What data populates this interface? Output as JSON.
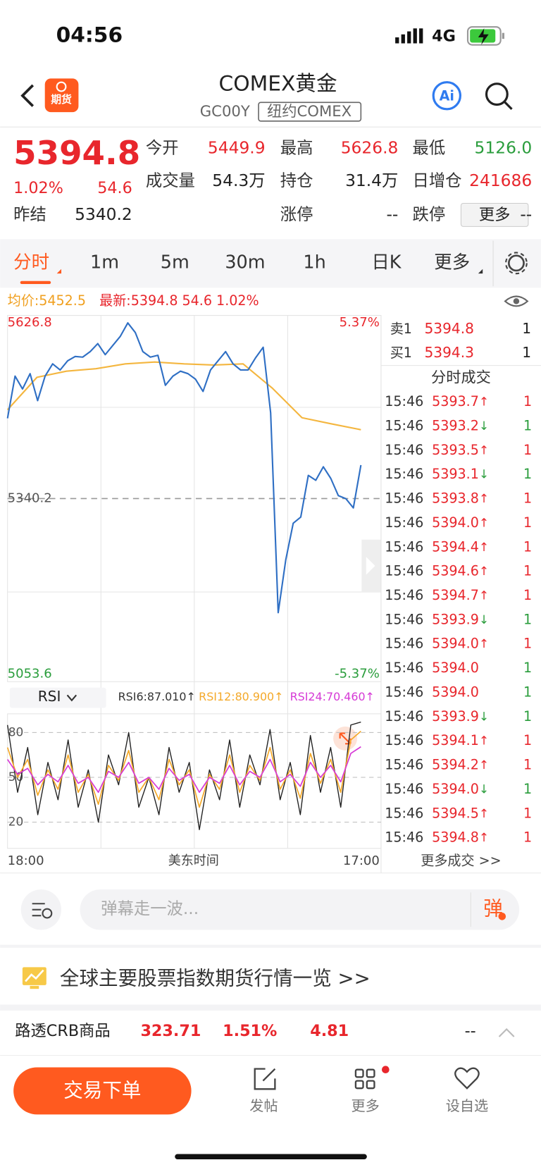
{
  "status": {
    "time": "04:56",
    "network": "4G"
  },
  "header": {
    "logo": "期货",
    "title": "COMEX黄金",
    "code": "GC00Y",
    "exchange": "纽约COMEX",
    "ai": "Ai"
  },
  "quote": {
    "price": "5394.8",
    "change_pct": "1.02%",
    "change": "54.6",
    "fields": [
      {
        "label": "今开",
        "value": "5449.9",
        "color": "#e8262c"
      },
      {
        "label": "最高",
        "value": "5626.8",
        "color": "#e8262c"
      },
      {
        "label": "最低",
        "value": "5126.0",
        "color": "#2a9d3c"
      },
      {
        "label": "成交量",
        "value": "54.3万",
        "color": "#222222"
      },
      {
        "label": "持仓",
        "value": "31.4万",
        "color": "#222222"
      },
      {
        "label": "日增仓",
        "value": "241686",
        "color": "#e8262c"
      },
      {
        "label": "昨结",
        "value": "5340.2",
        "color": "#222222"
      },
      {
        "label": "涨停",
        "value": "--",
        "color": "#222222"
      },
      {
        "label": "跌停",
        "value": "--",
        "color": "#222222"
      }
    ],
    "more": "更多"
  },
  "tabs": [
    "分时",
    "1m",
    "5m",
    "30m",
    "1h",
    "日K",
    "更多"
  ],
  "info": {
    "avg": "均价:5452.5",
    "latest": "最新:5394.8 54.6 1.02%"
  },
  "price_chart": {
    "type": "line",
    "ylim": [
      5053.6,
      5626.8
    ],
    "yticks": [
      5626.8,
      5053.6
    ],
    "baseline": 5340.2,
    "pct_ticks": [
      {
        "value": 5626.8,
        "label": "5.37%"
      },
      {
        "value": 5053.6,
        "label": "-5.37%"
      }
    ],
    "series": [
      {
        "color": "#2f6fc4",
        "values": [
          5471,
          5540,
          5519,
          5544,
          5500,
          5540,
          5560,
          5550,
          5565,
          5572,
          5571,
          5580,
          5593,
          5575,
          5590,
          5605,
          5626.8,
          5611,
          5580,
          5571,
          5574,
          5525,
          5540,
          5548,
          5544,
          5535,
          5515,
          5550,
          5565,
          5580,
          5560,
          5550,
          5550,
          5570,
          5587,
          5480,
          5154,
          5240,
          5300,
          5310,
          5378,
          5370,
          5392,
          5373,
          5345,
          5340,
          5325,
          5394.8
        ]
      },
      {
        "color": "#f4b63f",
        "values": [
          5485,
          5538,
          5548,
          5552,
          5560,
          5563,
          5560,
          5558,
          5560,
          5520,
          5472,
          5462,
          5452.5
        ]
      }
    ]
  },
  "rsi_chart": {
    "type": "line",
    "selector": "RSI",
    "ylim": [
      2.5,
      92.5
    ],
    "yticks": [
      20,
      50,
      80
    ],
    "series": [
      {
        "name": "RSI6:87.010↑",
        "color": "#222222",
        "values": [
          85,
          40,
          70,
          25,
          60,
          35,
          75,
          30,
          55,
          20,
          65,
          45,
          80,
          30,
          50,
          25,
          70,
          40,
          60,
          15,
          55,
          35,
          75,
          30,
          65,
          45,
          82,
          35,
          60,
          25,
          78,
          40,
          70,
          30,
          85,
          87.01
        ]
      },
      {
        "name": "RSI12:80.900↑",
        "color": "#f4a92a",
        "values": [
          70,
          50,
          62,
          38,
          55,
          42,
          65,
          40,
          52,
          32,
          58,
          48,
          68,
          40,
          50,
          35,
          62,
          45,
          55,
          30,
          52,
          42,
          65,
          40,
          58,
          48,
          70,
          42,
          55,
          36,
          66,
          46,
          62,
          40,
          75,
          80.9
        ]
      },
      {
        "name": "RSI24:70.460↑",
        "color": "#d63ad6",
        "values": [
          62,
          52,
          56,
          45,
          52,
          47,
          58,
          46,
          50,
          40,
          54,
          50,
          60,
          46,
          50,
          42,
          56,
          48,
          52,
          40,
          50,
          46,
          58,
          45,
          54,
          50,
          62,
          47,
          52,
          44,
          60,
          50,
          58,
          47,
          66,
          70.46
        ]
      }
    ]
  },
  "xaxis": [
    "18:00",
    "美东时间",
    "17:00"
  ],
  "depth": [
    {
      "label": "卖1",
      "price": "5394.8",
      "vol": "1"
    },
    {
      "label": "买1",
      "price": "5394.3",
      "vol": "1"
    }
  ],
  "trades": {
    "title": "分时成交",
    "more": "更多成交 >>",
    "rows": [
      {
        "time": "15:46",
        "price": "5393.7",
        "dir": "↑",
        "vol": "1",
        "color": "#e8262c"
      },
      {
        "time": "15:46",
        "price": "5393.2",
        "dir": "↓",
        "vol": "1",
        "color": "#2a9d3c"
      },
      {
        "time": "15:46",
        "price": "5393.5",
        "dir": "↑",
        "vol": "1",
        "color": "#e8262c"
      },
      {
        "time": "15:46",
        "price": "5393.1",
        "dir": "↓",
        "vol": "1",
        "color": "#2a9d3c"
      },
      {
        "time": "15:46",
        "price": "5393.8",
        "dir": "↑",
        "vol": "1",
        "color": "#e8262c"
      },
      {
        "time": "15:46",
        "price": "5394.0",
        "dir": "↑",
        "vol": "1",
        "color": "#e8262c"
      },
      {
        "time": "15:46",
        "price": "5394.4",
        "dir": "↑",
        "vol": "1",
        "color": "#e8262c"
      },
      {
        "time": "15:46",
        "price": "5394.6",
        "dir": "↑",
        "vol": "1",
        "color": "#e8262c"
      },
      {
        "time": "15:46",
        "price": "5394.7",
        "dir": "↑",
        "vol": "1",
        "color": "#e8262c"
      },
      {
        "time": "15:46",
        "price": "5393.9",
        "dir": "↓",
        "vol": "1",
        "color": "#2a9d3c"
      },
      {
        "time": "15:46",
        "price": "5394.0",
        "dir": "↑",
        "vol": "1",
        "color": "#e8262c"
      },
      {
        "time": "15:46",
        "price": "5394.0",
        "vol": "1",
        "color": "#2a9d3c"
      },
      {
        "time": "15:46",
        "price": "5394.0",
        "vol": "1",
        "color": "#2a9d3c"
      },
      {
        "time": "15:46",
        "price": "5393.9",
        "dir": "↓",
        "vol": "1",
        "color": "#2a9d3c"
      },
      {
        "time": "15:46",
        "price": "5394.1",
        "dir": "↑",
        "vol": "1",
        "color": "#e8262c"
      },
      {
        "time": "15:46",
        "price": "5394.2",
        "dir": "↑",
        "vol": "1",
        "color": "#e8262c"
      },
      {
        "time": "15:46",
        "price": "5394.0",
        "dir": "↓",
        "vol": "1",
        "color": "#2a9d3c"
      },
      {
        "time": "15:46",
        "price": "5394.5",
        "dir": "↑",
        "vol": "1",
        "color": "#e8262c"
      },
      {
        "time": "15:46",
        "price": "5394.8",
        "dir": "↑",
        "vol": "1",
        "color": "#e8262c"
      }
    ]
  },
  "comment": {
    "placeholder": "弹幕走一波...",
    "button": "弹"
  },
  "banner": {
    "text": "全球主要股票指数期货行情一览 >>"
  },
  "ticker": {
    "name": "路透CRB商品",
    "price": "323.71",
    "pct": "1.51%",
    "change": "4.81",
    "extra": "--"
  },
  "nav": {
    "trade": "交易下单",
    "items": [
      "发帖",
      "更多",
      "设自选"
    ]
  }
}
